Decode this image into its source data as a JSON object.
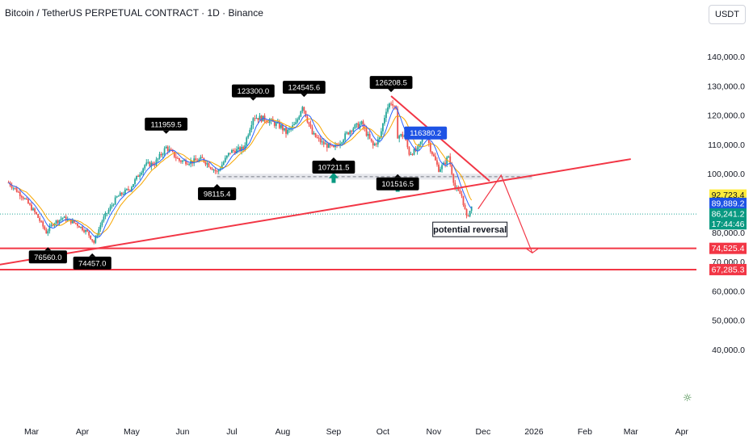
{
  "header": {
    "title": "Bitcoin / TetherUS PERPETUAL CONTRACT · 1D · Binance",
    "currency": "USDT"
  },
  "colors": {
    "up": "#26a69a",
    "down": "#ef5350",
    "trendline": "#f23645",
    "ma_orange": "#f7a600",
    "ma_blue": "#2962ff",
    "label_dark": "#000000",
    "label_blue": "#1e53e5",
    "label_yellow": "#ffeb3b",
    "label_green": "#089981"
  },
  "icons": [
    "up-arrow-icon",
    "sun-icon"
  ],
  "chart_data": {
    "type": "candlestick",
    "title": "Bitcoin / TetherUS PERPETUAL CONTRACT · 1D · Binance",
    "y_unit": "USDT",
    "ylim": [
      37000,
      147000
    ],
    "y_ticks": [
      40000,
      50000,
      60000,
      70000,
      80000,
      90000,
      100000,
      110000,
      120000,
      130000,
      140000
    ],
    "y_tick_labels": [
      "40,000.0",
      "50,000.0",
      "60,000.0",
      "70,000.0",
      "80,000.0",
      "90,000.0",
      "100,000.0",
      "110,000.0",
      "120,000.0",
      "130,000.0",
      "140,000.0"
    ],
    "x_ticks": [
      {
        "label": "Mar",
        "date": "2025-03-01"
      },
      {
        "label": "Apr",
        "date": "2025-04-01"
      },
      {
        "label": "May",
        "date": "2025-05-01"
      },
      {
        "label": "Jun",
        "date": "2025-06-01"
      },
      {
        "label": "Jul",
        "date": "2025-07-01"
      },
      {
        "label": "Aug",
        "date": "2025-08-01"
      },
      {
        "label": "Sep",
        "date": "2025-09-01"
      },
      {
        "label": "Oct",
        "date": "2025-10-01"
      },
      {
        "label": "Nov",
        "date": "2025-11-01"
      },
      {
        "label": "Dec",
        "date": "2025-12-01"
      },
      {
        "label": "2026",
        "date": "2026-01-01"
      },
      {
        "label": "Feb",
        "date": "2026-02-01"
      },
      {
        "label": "Mar",
        "date": "2026-03-01"
      },
      {
        "label": "Apr",
        "date": "2026-04-01"
      }
    ],
    "price_path": [
      [
        "2025-02-15",
        97000
      ],
      [
        "2025-02-24",
        92000
      ],
      [
        "2025-03-04",
        86000
      ],
      [
        "2025-03-10",
        80000
      ],
      [
        "2025-03-14",
        83000
      ],
      [
        "2025-03-20",
        85000
      ],
      [
        "2025-03-28",
        83000
      ],
      [
        "2025-04-04",
        80000
      ],
      [
        "2025-04-08",
        76500
      ],
      [
        "2025-04-13",
        84000
      ],
      [
        "2025-04-22",
        92000
      ],
      [
        "2025-04-30",
        95000
      ],
      [
        "2025-05-09",
        103000
      ],
      [
        "2025-05-15",
        103500
      ],
      [
        "2025-05-22",
        109000
      ],
      [
        "2025-05-30",
        104500
      ],
      [
        "2025-06-06",
        104000
      ],
      [
        "2025-06-13",
        105000
      ],
      [
        "2025-06-22",
        100500
      ],
      [
        "2025-06-30",
        107500
      ],
      [
        "2025-07-08",
        108500
      ],
      [
        "2025-07-14",
        119500
      ],
      [
        "2025-07-22",
        118500
      ],
      [
        "2025-07-31",
        116000
      ],
      [
        "2025-08-03",
        114000
      ],
      [
        "2025-08-09",
        117000
      ],
      [
        "2025-08-13",
        123500
      ],
      [
        "2025-08-19",
        113500
      ],
      [
        "2025-08-25",
        110500
      ],
      [
        "2025-09-01",
        108500
      ],
      [
        "2025-09-05",
        111000
      ],
      [
        "2025-09-12",
        115500
      ],
      [
        "2025-09-18",
        117000
      ],
      [
        "2025-09-25",
        109500
      ],
      [
        "2025-09-29",
        112000
      ],
      [
        "2025-10-03",
        122000
      ],
      [
        "2025-10-06",
        124500
      ],
      [
        "2025-10-09",
        121000
      ],
      [
        "2025-10-10",
        113000
      ],
      [
        "2025-10-14",
        113000
      ],
      [
        "2025-10-17",
        107000
      ],
      [
        "2025-10-22",
        108000
      ],
      [
        "2025-10-27",
        114500
      ],
      [
        "2025-10-30",
        108500
      ],
      [
        "2025-11-04",
        101500
      ],
      [
        "2025-11-07",
        103000
      ],
      [
        "2025-11-10",
        106000
      ],
      [
        "2025-11-14",
        95000
      ],
      [
        "2025-11-18",
        92500
      ],
      [
        "2025-11-21",
        85000
      ],
      [
        "2025-11-24",
        88500
      ]
    ],
    "moving_averages": [
      {
        "color_key": "ma_orange",
        "last_value": 92723.4
      },
      {
        "color_key": "ma_blue",
        "last_value": 89889.2
      }
    ],
    "pivot_labels": [
      {
        "text": "76560.0",
        "date": "2025-03-11",
        "price": 76560,
        "side": "below"
      },
      {
        "text": "74457.0",
        "date": "2025-04-07",
        "price": 74457,
        "side": "below"
      },
      {
        "text": "111959.5",
        "date": "2025-05-22",
        "price": 111959.5,
        "side": "above"
      },
      {
        "text": "98115.4",
        "date": "2025-06-22",
        "price": 98115.4,
        "side": "below"
      },
      {
        "text": "123300.0",
        "date": "2025-07-14",
        "price": 123300,
        "side": "above"
      },
      {
        "text": "124545.6",
        "date": "2025-08-14",
        "price": 124545.6,
        "side": "above"
      },
      {
        "text": "107211.5",
        "date": "2025-09-01",
        "price": 107211.5,
        "side": "below"
      },
      {
        "text": "126208.5",
        "date": "2025-10-06",
        "price": 126208.5,
        "side": "above"
      },
      {
        "text": "101516.5",
        "date": "2025-10-10",
        "price": 101516.5,
        "side": "below"
      }
    ],
    "blue_label": {
      "text": "116380.2",
      "date": "2025-10-27",
      "price": 116380.2
    },
    "annotation": {
      "text": "potential reversal",
      "date": "2025-11-24",
      "price": 81000
    },
    "support_zone": [
      98000,
      100000
    ],
    "trendlines": [
      {
        "name": "rising-trendline",
        "from": [
          "2025-01-25",
          67500
        ],
        "to": [
          "2026-03-01",
          105000
        ]
      },
      {
        "name": "falling-trendline",
        "from": [
          "2025-10-06",
          126500
        ],
        "to": [
          "2025-12-05",
          97500
        ]
      }
    ],
    "horizontal_lines": [
      74525.4,
      67285.3
    ],
    "projection_path": [
      [
        "2025-11-28",
        88000
      ],
      [
        "2025-12-12",
        99500
      ],
      [
        "2025-12-31",
        73000
      ]
    ],
    "price_badges": [
      {
        "text": "92,723.4",
        "price": 92723.4,
        "bg_key": "label_yellow",
        "fg": "#131722"
      },
      {
        "text": "89,889.2",
        "price": 89889.2,
        "bg_key": "label_blue",
        "fg": "#ffffff"
      },
      {
        "text": "86,241.2",
        "price": 86241.2,
        "bg_key": "label_green",
        "fg": "#ffffff"
      },
      {
        "text": "17:44:46",
        "price": 82900,
        "bg_key": "label_green",
        "fg": "#ffffff"
      },
      {
        "text": "74,525.4",
        "price": 74525.4,
        "bg_key": "trendline",
        "fg": "#ffffff"
      },
      {
        "text": "67,285.3",
        "price": 67285.3,
        "bg_key": "trendline",
        "fg": "#ffffff"
      }
    ],
    "last_price": 86241.2,
    "grid": false,
    "legend": "none"
  }
}
